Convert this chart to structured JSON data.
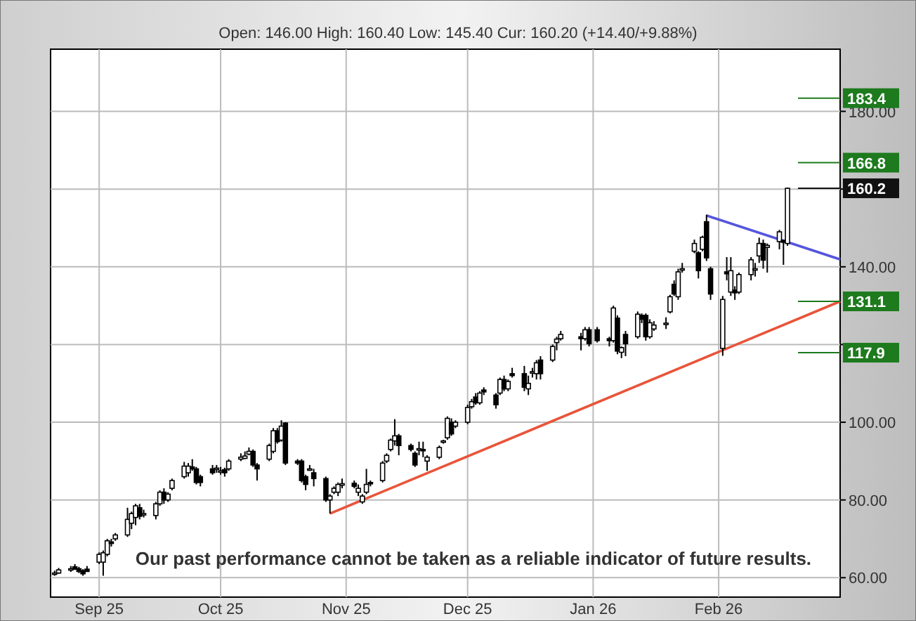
{
  "chart_data": {
    "type": "candlestick",
    "subtitle": "Open: 146.00 High: 160.40 Low: 145.40 Cur: 160.20 (+14.40/+9.88%)",
    "x": [
      "2025-08-21",
      "2025-08-22",
      "2025-08-25",
      "2025-08-26",
      "2025-08-27",
      "2025-08-28",
      "2025-08-29",
      "2025-09-01",
      "2025-09-02",
      "2025-09-03",
      "2025-09-04",
      "2025-09-05",
      "2025-09-08",
      "2025-09-09",
      "2025-09-10",
      "2025-09-11",
      "2025-09-12",
      "2025-09-15",
      "2025-09-16",
      "2025-09-17",
      "2025-09-18",
      "2025-09-19",
      "2025-09-22",
      "2025-09-23",
      "2025-09-24",
      "2025-09-25",
      "2025-09-26",
      "2025-09-29",
      "2025-09-30",
      "2025-10-01",
      "2025-10-02",
      "2025-10-03",
      "2025-10-06",
      "2025-10-07",
      "2025-10-08",
      "2025-10-09",
      "2025-10-10",
      "2025-10-13",
      "2025-10-14",
      "2025-10-15",
      "2025-10-16",
      "2025-10-17",
      "2025-10-20",
      "2025-10-21",
      "2025-10-22",
      "2025-10-23",
      "2025-10-24",
      "2025-10-27",
      "2025-10-28",
      "2025-10-29",
      "2025-10-30",
      "2025-10-31",
      "2025-11-03",
      "2025-11-04",
      "2025-11-05",
      "2025-11-06",
      "2025-11-07",
      "2025-11-10",
      "2025-11-11",
      "2025-11-12",
      "2025-11-13",
      "2025-11-14",
      "2025-11-17",
      "2025-11-18",
      "2025-11-19",
      "2025-11-20",
      "2025-11-21",
      "2025-11-24",
      "2025-11-25",
      "2025-11-26",
      "2025-11-27",
      "2025-11-28",
      "2025-12-01",
      "2025-12-02",
      "2025-12-03",
      "2025-12-04",
      "2025-12-05",
      "2025-12-08",
      "2025-12-09",
      "2025-12-10",
      "2025-12-11",
      "2025-12-12",
      "2025-12-15",
      "2025-12-16",
      "2025-12-17",
      "2025-12-18",
      "2025-12-19",
      "2025-12-22",
      "2025-12-23",
      "2025-12-24",
      "2025-12-29",
      "2025-12-30",
      "2025-12-31",
      "2026-01-02",
      "2026-01-05",
      "2026-01-06",
      "2026-01-07",
      "2026-01-08",
      "2026-01-09",
      "2026-01-12",
      "2026-01-13",
      "2026-01-14",
      "2026-01-15",
      "2026-01-16",
      "2026-01-19",
      "2026-01-20",
      "2026-01-21",
      "2026-01-22",
      "2026-01-23",
      "2026-01-26",
      "2026-01-27",
      "2026-01-28",
      "2026-01-29",
      "2026-01-30",
      "2026-02-02",
      "2026-02-03",
      "2026-02-04",
      "2026-02-05",
      "2026-02-06",
      "2026-02-09",
      "2026-02-10",
      "2026-02-11",
      "2026-02-12",
      "2026-02-13",
      "2026-02-16",
      "2026-02-17",
      "2026-02-18"
    ],
    "ohlc": [
      [
        61,
        61.8,
        60.5,
        61.2
      ],
      [
        61.2,
        62.5,
        61,
        62
      ],
      [
        62,
        63,
        61.5,
        62.3
      ],
      [
        62.8,
        63.5,
        62,
        62.2
      ],
      [
        62.3,
        62.8,
        61.2,
        61.6
      ],
      [
        61.8,
        62.2,
        60.5,
        61
      ],
      [
        62.2,
        63,
        61.5,
        61.6
      ],
      [
        64,
        66.5,
        63.5,
        66
      ],
      [
        64,
        67,
        60.5,
        66.4
      ],
      [
        66,
        70,
        65.5,
        69.5
      ],
      [
        69.2,
        70,
        68,
        68.8
      ],
      [
        70,
        71.5,
        69.5,
        71
      ],
      [
        71,
        78,
        70.5,
        75
      ],
      [
        74,
        77,
        72.5,
        76.5
      ],
      [
        75.5,
        79,
        73.5,
        78.5
      ],
      [
        78,
        79,
        75,
        75.8
      ],
      [
        76.5,
        77.5,
        75.5,
        76.5
      ],
      [
        76,
        79.5,
        75,
        79
      ],
      [
        79,
        82.5,
        78.5,
        82
      ],
      [
        82,
        83,
        79,
        80
      ],
      [
        80,
        82,
        79.5,
        81.5
      ],
      [
        83,
        85.5,
        82.5,
        85
      ],
      [
        86,
        89.8,
        85.5,
        88.7
      ],
      [
        87,
        89.5,
        86,
        88.7
      ],
      [
        88.5,
        90.5,
        87.5,
        88
      ],
      [
        88,
        88.5,
        84,
        84.5
      ],
      [
        86,
        86.5,
        83.5,
        84.5
      ],
      [
        88,
        89,
        86.5,
        87
      ],
      [
        88,
        89,
        87,
        88.2
      ],
      [
        87.5,
        88.5,
        86.5,
        87.5
      ],
      [
        87.8,
        88.3,
        86,
        87
      ],
      [
        88,
        90.5,
        87.5,
        90
      ],
      [
        90.5,
        92,
        90,
        91
      ],
      [
        90.7,
        92.5,
        90.5,
        91.3
      ],
      [
        91.8,
        93.5,
        91.5,
        92.5
      ],
      [
        92.5,
        93,
        88.5,
        89
      ],
      [
        89,
        89.5,
        85,
        88
      ],
      [
        90.5,
        94.5,
        90,
        94
      ],
      [
        92.5,
        98.5,
        92,
        97.8
      ],
      [
        97.8,
        98.5,
        94.5,
        95
      ],
      [
        95.4,
        100.5,
        95,
        99
      ],
      [
        99.8,
        100,
        89,
        89.5
      ],
      [
        90,
        90.5,
        89,
        89.5
      ],
      [
        90,
        90.5,
        84.5,
        85
      ],
      [
        86,
        86.5,
        82.5,
        84
      ],
      [
        88,
        89,
        87.5,
        88
      ],
      [
        87,
        88,
        83.5,
        85.5
      ],
      [
        85.5,
        86,
        79.5,
        80
      ],
      [
        80,
        81.5,
        76.5,
        81
      ],
      [
        82,
        83.5,
        81.5,
        83
      ],
      [
        82,
        84.5,
        81,
        84
      ],
      [
        83.8,
        85.5,
        83,
        84.2
      ],
      [
        84.3,
        85,
        83,
        83.5
      ],
      [
        82,
        84,
        81,
        83
      ],
      [
        79.5,
        81.5,
        79,
        81
      ],
      [
        82,
        88,
        81.5,
        84
      ],
      [
        84.5,
        85,
        83.5,
        84.3
      ],
      [
        85,
        90,
        84.5,
        89.5
      ],
      [
        90,
        92,
        89.5,
        91.5
      ],
      [
        93,
        95.8,
        92.5,
        95.4
      ],
      [
        95.2,
        100.8,
        94,
        96.5
      ],
      [
        96.5,
        97,
        91.5,
        94
      ],
      [
        94,
        94.5,
        92.5,
        93
      ],
      [
        92,
        92.5,
        88.5,
        89
      ],
      [
        93,
        95,
        91.5,
        93.2
      ],
      [
        93,
        95,
        91,
        92.8
      ],
      [
        90,
        91.5,
        87.5,
        91
      ],
      [
        91,
        94,
        90.5,
        93.5
      ],
      [
        95,
        95.5,
        94.5,
        95.2
      ],
      [
        96,
        101.5,
        95.5,
        101
      ],
      [
        100,
        101,
        96.5,
        97
      ],
      [
        99,
        100.5,
        98.5,
        100
      ],
      [
        100,
        104.5,
        99.5,
        103.8
      ],
      [
        104,
        106,
        103.5,
        105.3
      ],
      [
        106.5,
        107.5,
        104.5,
        105
      ],
      [
        105,
        108,
        104.5,
        107.5
      ],
      [
        108.3,
        109,
        107,
        107.8
      ],
      [
        107,
        107.5,
        103.5,
        104.5
      ],
      [
        107.5,
        111.5,
        107,
        111
      ],
      [
        111,
        112,
        108,
        108.6
      ],
      [
        108.6,
        111,
        108,
        110.5
      ],
      [
        112.5,
        114,
        111.5,
        112
      ],
      [
        112.5,
        114.5,
        108,
        109
      ],
      [
        108.6,
        112,
        107,
        110
      ],
      [
        113,
        114,
        111.5,
        113
      ],
      [
        112.5,
        116,
        111,
        115.3
      ],
      [
        116,
        117,
        111,
        112.5
      ],
      [
        116,
        120,
        115.5,
        119.5
      ],
      [
        120.5,
        122,
        118.5,
        121.4
      ],
      [
        121.5,
        123.5,
        121,
        122.6
      ],
      [
        122,
        123,
        118.5,
        121.5
      ],
      [
        121.5,
        124.5,
        121,
        123.8
      ],
      [
        123.8,
        124.5,
        119.5,
        120.2
      ],
      [
        123.8,
        124.5,
        120.5,
        121
      ],
      [
        121.5,
        122,
        119.5,
        121
      ],
      [
        121,
        130,
        120.5,
        129.4
      ],
      [
        126.8,
        127.5,
        117.5,
        118.3
      ],
      [
        118,
        119.5,
        116.5,
        119.2
      ],
      [
        122.6,
        123.5,
        117,
        120.2
      ],
      [
        122,
        128.5,
        121.5,
        127.8
      ],
      [
        127.5,
        128,
        125.5,
        126.5
      ],
      [
        127.5,
        128,
        121,
        122
      ],
      [
        122,
        126.5,
        121.5,
        125.6
      ],
      [
        124,
        126,
        123.5,
        125
      ],
      [
        125.5,
        127,
        124,
        125.5
      ],
      [
        128.4,
        132.8,
        128,
        132.3
      ],
      [
        135.5,
        136.5,
        132.5,
        133
      ],
      [
        132.3,
        139.5,
        131.5,
        138.7
      ],
      [
        139.5,
        141,
        138.5,
        139.5
      ],
      [
        144,
        147,
        143.5,
        146
      ],
      [
        143.6,
        144,
        137,
        139
      ],
      [
        144.5,
        148,
        144,
        147.6
      ],
      [
        151.6,
        153.4,
        141.5,
        142.3
      ],
      [
        139.5,
        140,
        131.5,
        133
      ],
      [
        119,
        132.5,
        117.1,
        131.6
      ],
      [
        138.7,
        142.5,
        136.5,
        138.2
      ],
      [
        133.5,
        142.5,
        132.5,
        139
      ],
      [
        134,
        135,
        131.5,
        133.3
      ],
      [
        133.5,
        138.5,
        133,
        138
      ],
      [
        138,
        142.5,
        136.5,
        141.8
      ],
      [
        139.5,
        141,
        137.5,
        139.5
      ],
      [
        142.8,
        147.5,
        141,
        146
      ],
      [
        146,
        147,
        139.5,
        141.7
      ],
      [
        145,
        146,
        138.5,
        145.5
      ],
      [
        146.5,
        149.5,
        144.5,
        149
      ],
      [
        146.8,
        147,
        140.5,
        146.3
      ],
      [
        146,
        160.4,
        145.4,
        160.2
      ]
    ],
    "series": [
      {
        "type": "line",
        "color": "#e8553a",
        "x": [
          "2025-10-28",
          "2026-03-03"
        ],
        "values": [
          76.5,
          131.1
        ]
      },
      {
        "type": "line",
        "color": "#5555dd",
        "x": [
          "2026-01-29",
          "2026-03-03"
        ],
        "values": [
          153.2,
          141.9
        ]
      }
    ],
    "xlim": [
      "2025-08-20",
      "2026-03-03"
    ],
    "xticks": [
      {
        "value": "2025-09-01",
        "label": "Sep 25"
      },
      {
        "value": "2025-10-01",
        "label": "Oct 25"
      },
      {
        "value": "2025-11-01",
        "label": "Nov 25"
      },
      {
        "value": "2025-12-01",
        "label": "Dec 25"
      },
      {
        "value": "2026-01-01",
        "label": "Jan 26"
      },
      {
        "value": "2026-02-01",
        "label": "Feb 26"
      }
    ],
    "ylim": [
      55,
      196
    ],
    "yticks": [
      {
        "value": 60,
        "label": "60.00"
      },
      {
        "value": 80,
        "label": "80.00"
      },
      {
        "value": 100,
        "label": "100.00"
      },
      {
        "value": 120,
        "label": null
      },
      {
        "value": 140,
        "label": "140.00"
      },
      {
        "value": 160,
        "label": null
      },
      {
        "value": 180,
        "label": "180.00"
      }
    ],
    "grid": true,
    "ref_lines": [
      {
        "axis": "y",
        "value": 183.4,
        "label": "183.4",
        "color": "#1d7a1d"
      },
      {
        "axis": "y",
        "value": 166.8,
        "label": "166.8",
        "color": "#1d7a1d"
      },
      {
        "axis": "y",
        "value": 160.2,
        "label": "160.2",
        "color": "#111111"
      },
      {
        "axis": "y",
        "value": 131.1,
        "label": "131.1",
        "color": "#1d7a1d"
      },
      {
        "axis": "y",
        "value": 117.9,
        "label": "117.9",
        "color": "#1d7a1d"
      }
    ],
    "annotations": [
      "Our past performance cannot be taken as a reliable indicator of future results."
    ]
  }
}
